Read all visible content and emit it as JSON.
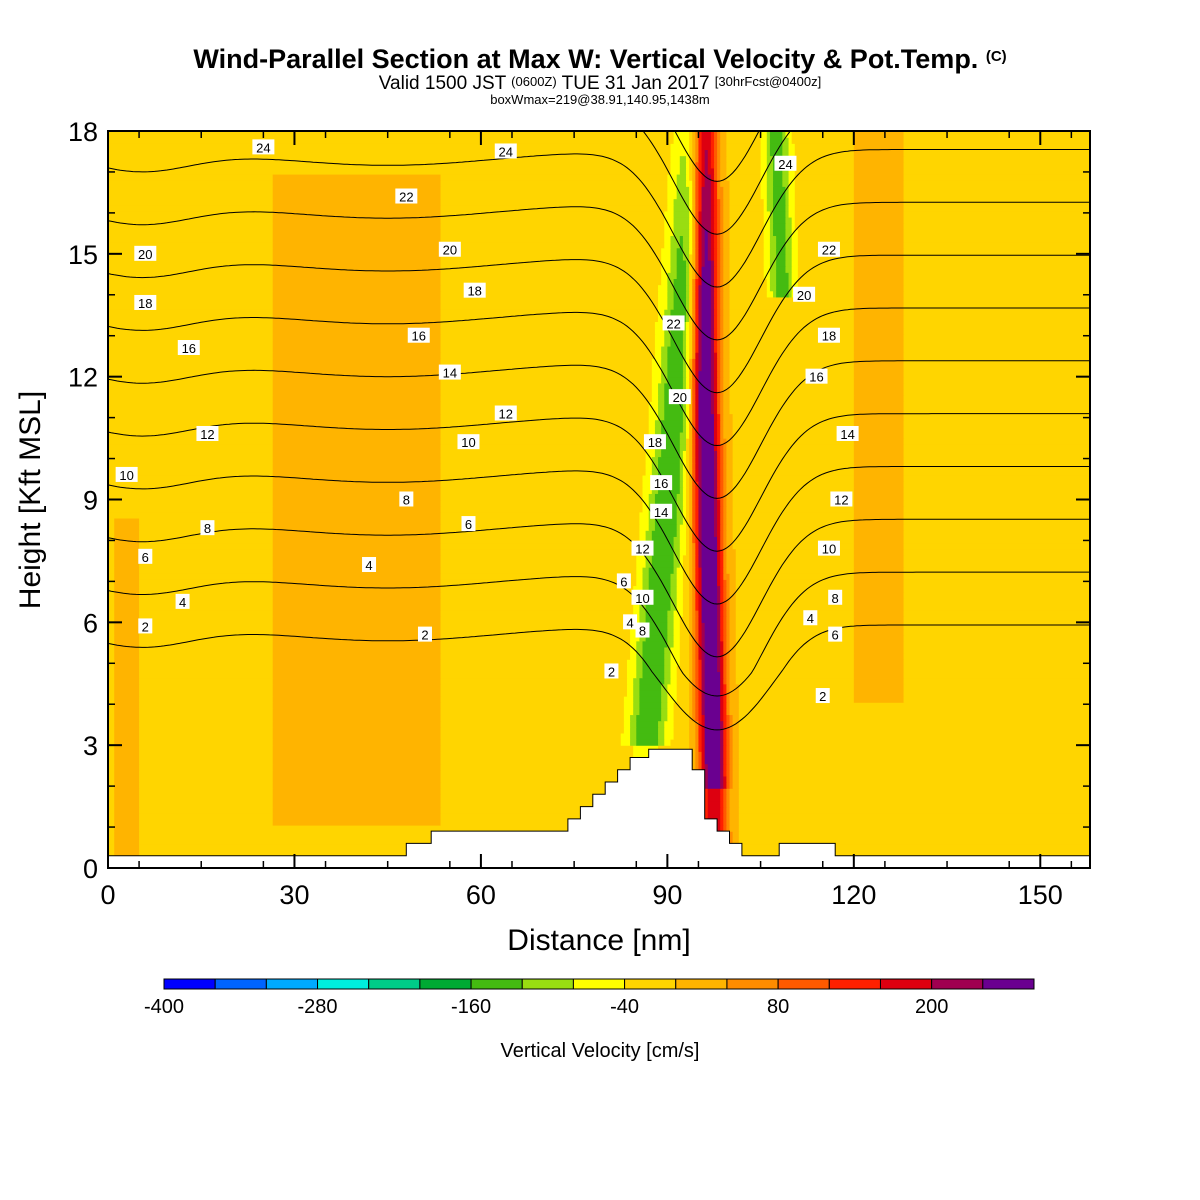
{
  "title": "Wind-Parallel Section at Max W: Vertical Velocity & Pot.Temp.",
  "title_mark": "(C)",
  "subtitle_a": "Valid 1500 JST",
  "subtitle_b": "(0600Z)",
  "subtitle_c": "TUE 31 Jan 2017",
  "subtitle_d": "[30hrFcst@0400z]",
  "subtitle2": "boxWmax=219@38.91,140.95,1438m",
  "chart_data": {
    "type": "heatmap",
    "xlabel": "Distance [nm]",
    "ylabel": "Height [Kft MSL]",
    "xlim": [
      0,
      158
    ],
    "ylim": [
      0,
      18
    ],
    "xticks": [
      0,
      30,
      60,
      90,
      120,
      150
    ],
    "yticks": [
      0,
      3,
      6,
      9,
      12,
      15,
      18
    ],
    "grid": false,
    "colorbar": {
      "title": "Vertical Velocity [cm/s]",
      "min": -400,
      "step": 40,
      "tick_labels": [
        "-400",
        "-280",
        "-160",
        "-40",
        "80",
        "200"
      ],
      "tick_values": [
        -400,
        -280,
        -160,
        -40,
        80,
        200
      ],
      "colors": [
        "#0000ff",
        "#0064ff",
        "#00aaff",
        "#00eedd",
        "#00cc88",
        "#00aa33",
        "#44bb11",
        "#99dd11",
        "#ffff00",
        "#ffd500",
        "#ffb400",
        "#ff8c00",
        "#ff5a00",
        "#ff2000",
        "#dd0010",
        "#a00050",
        "#6a0090"
      ]
    },
    "background_color": "#ffd200",
    "terrain": [
      [
        0,
        0.3
      ],
      [
        48,
        0.3
      ],
      [
        48,
        0.6
      ],
      [
        52,
        0.6
      ],
      [
        52,
        0.9
      ],
      [
        74,
        0.9
      ],
      [
        74,
        1.2
      ],
      [
        76,
        1.2
      ],
      [
        76,
        1.5
      ],
      [
        78,
        1.5
      ],
      [
        78,
        1.8
      ],
      [
        80,
        1.8
      ],
      [
        80,
        2.1
      ],
      [
        82,
        2.1
      ],
      [
        82,
        2.4
      ],
      [
        84,
        2.4
      ],
      [
        84,
        2.7
      ],
      [
        87,
        2.7
      ],
      [
        87,
        2.9
      ],
      [
        94,
        2.9
      ],
      [
        94,
        2.4
      ],
      [
        96,
        2.4
      ],
      [
        96,
        1.2
      ],
      [
        98,
        1.2
      ],
      [
        98,
        0.9
      ],
      [
        100,
        0.9
      ],
      [
        100,
        0.6
      ],
      [
        102,
        0.6
      ],
      [
        102,
        0.3
      ],
      [
        108,
        0.3
      ],
      [
        108,
        0.6
      ],
      [
        117,
        0.6
      ],
      [
        117,
        0.3
      ],
      [
        158,
        0.3
      ]
    ],
    "theta_contours": [
      {
        "value": 2,
        "labels": [
          [
            6,
            5.9
          ],
          [
            51,
            5.7
          ],
          [
            81,
            4.8
          ],
          [
            115,
            4.2
          ]
        ]
      },
      {
        "value": 4,
        "labels": [
          [
            12,
            6.5
          ],
          [
            42,
            7.4
          ],
          [
            84,
            6.0
          ],
          [
            113,
            6.1
          ]
        ]
      },
      {
        "value": 6,
        "labels": [
          [
            6,
            7.6
          ],
          [
            58,
            8.4
          ],
          [
            83,
            7.0
          ],
          [
            117,
            5.7
          ]
        ]
      },
      {
        "value": 8,
        "labels": [
          [
            16,
            8.3
          ],
          [
            48,
            9.0
          ],
          [
            86,
            5.8
          ],
          [
            117,
            6.6
          ]
        ]
      },
      {
        "value": 10,
        "labels": [
          [
            3,
            9.6
          ],
          [
            58,
            10.4
          ],
          [
            86,
            6.6
          ],
          [
            116,
            7.8
          ]
        ]
      },
      {
        "value": 12,
        "labels": [
          [
            16,
            10.6
          ],
          [
            64,
            11.1
          ],
          [
            86,
            7.8
          ],
          [
            118,
            9.0
          ]
        ]
      },
      {
        "value": 14,
        "labels": [
          [
            55,
            12.1
          ],
          [
            89,
            8.7
          ],
          [
            119,
            10.6
          ]
        ]
      },
      {
        "value": 16,
        "labels": [
          [
            13,
            12.7
          ],
          [
            50,
            13.0
          ],
          [
            89,
            9.4
          ],
          [
            114,
            12.0
          ]
        ]
      },
      {
        "value": 18,
        "labels": [
          [
            6,
            13.8
          ],
          [
            59,
            14.1
          ],
          [
            88,
            10.4
          ],
          [
            116,
            13.0
          ]
        ]
      },
      {
        "value": 20,
        "labels": [
          [
            6,
            15.0
          ],
          [
            55,
            15.1
          ],
          [
            92,
            11.5
          ],
          [
            112,
            14.0
          ]
        ]
      },
      {
        "value": 22,
        "labels": [
          [
            48,
            16.4
          ],
          [
            91,
            13.3
          ],
          [
            116,
            15.1
          ]
        ]
      },
      {
        "value": 24,
        "labels": [
          [
            25,
            17.6
          ],
          [
            64,
            17.5
          ],
          [
            109,
            17.2
          ]
        ]
      }
    ]
  }
}
